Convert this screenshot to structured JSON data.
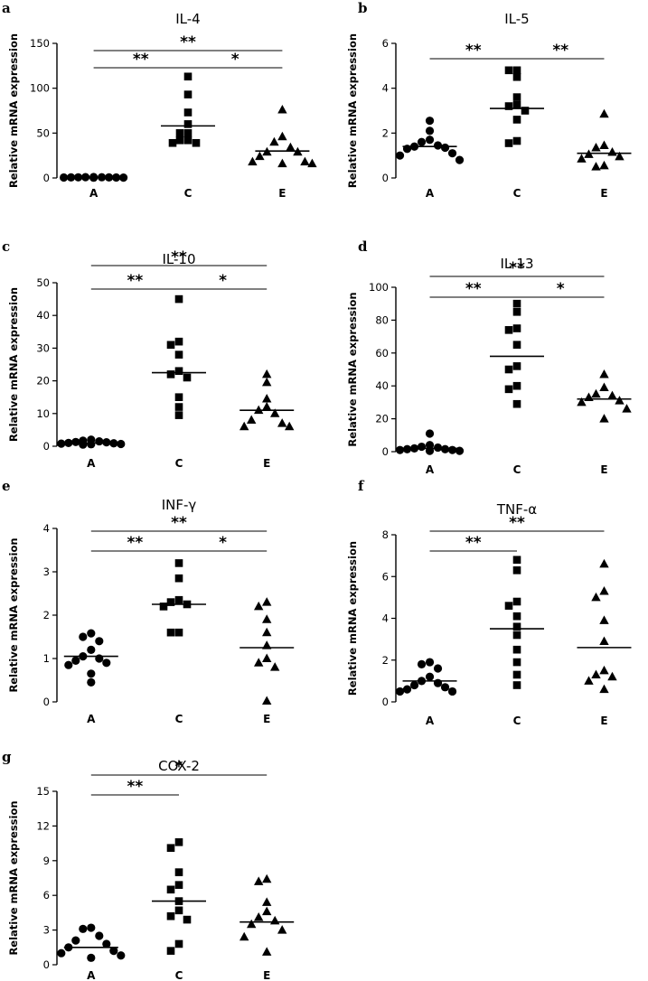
{
  "chart_data": [
    {
      "panel": "a",
      "type": "scatter",
      "title": "IL-4",
      "ylabel": "Relative mRNA expression",
      "categories": [
        "A",
        "C",
        "E"
      ],
      "ylim": [
        0,
        150
      ],
      "yticks": [
        0,
        50,
        100,
        150
      ],
      "groups": [
        {
          "category": "A",
          "marker": "circle",
          "mean": 0.5,
          "values": [
            0.3,
            0.4,
            0.5,
            0.5,
            0.6,
            0.6,
            0.7,
            0.8,
            0.9,
            1.0
          ]
        },
        {
          "category": "C",
          "marker": "square",
          "mean": 58,
          "values": [
            113,
            93,
            73,
            60,
            50,
            50,
            42,
            42,
            39,
            39
          ]
        },
        {
          "category": "E",
          "marker": "triangle",
          "mean": 30,
          "values": [
            76,
            46,
            40,
            34,
            29,
            29,
            24,
            18,
            18,
            16,
            16
          ]
        }
      ],
      "significance": [
        {
          "from": "A",
          "to": "C",
          "label": "**"
        },
        {
          "from": "C",
          "to": "E",
          "label": "*"
        },
        {
          "from": "A",
          "to": "E",
          "label": "**"
        }
      ]
    },
    {
      "panel": "b",
      "type": "scatter",
      "title": "IL-5",
      "ylabel": "Relative mRNA expression",
      "categories": [
        "A",
        "C",
        "E"
      ],
      "ylim": [
        0,
        6
      ],
      "yticks": [
        0,
        2,
        4,
        6
      ],
      "groups": [
        {
          "category": "A",
          "marker": "circle",
          "mean": 1.4,
          "values": [
            2.55,
            2.1,
            1.7,
            1.6,
            1.45,
            1.4,
            1.35,
            1.3,
            1.1,
            1.0,
            0.8
          ]
        },
        {
          "category": "C",
          "marker": "square",
          "mean": 3.1,
          "values": [
            4.8,
            4.8,
            4.5,
            3.6,
            3.25,
            3.2,
            3.0,
            2.6,
            1.65,
            1.55
          ]
        },
        {
          "category": "E",
          "marker": "triangle",
          "mean": 1.1,
          "values": [
            2.85,
            1.45,
            1.35,
            1.15,
            1.05,
            0.95,
            0.85,
            0.55,
            0.5
          ]
        }
      ],
      "significance": [
        {
          "from": "A",
          "to": "C",
          "label": "**"
        },
        {
          "from": "C",
          "to": "E",
          "label": "**"
        }
      ]
    },
    {
      "panel": "c",
      "type": "scatter",
      "title": "IL-10",
      "ylabel": "Relative mRNA expression",
      "categories": [
        "A",
        "C",
        "E"
      ],
      "ylim": [
        0,
        50
      ],
      "yticks": [
        0,
        10,
        20,
        30,
        40,
        50
      ],
      "groups": [
        {
          "category": "A",
          "marker": "circle",
          "mean": 1.0,
          "values": [
            0.5,
            0.6,
            0.7,
            0.8,
            0.9,
            1.0,
            1.2,
            1.3,
            1.5,
            1.7,
            2.0
          ]
        },
        {
          "category": "C",
          "marker": "square",
          "mean": 22.5,
          "values": [
            45,
            32,
            31,
            28,
            23,
            22,
            21,
            15,
            12,
            9.5
          ]
        },
        {
          "category": "E",
          "marker": "triangle",
          "mean": 11,
          "values": [
            22,
            19.5,
            14.5,
            12,
            11,
            10,
            8,
            7,
            6,
            6
          ]
        }
      ],
      "significance": [
        {
          "from": "A",
          "to": "C",
          "label": "**"
        },
        {
          "from": "C",
          "to": "E",
          "label": "*"
        },
        {
          "from": "A",
          "to": "E",
          "label": "**"
        }
      ]
    },
    {
      "panel": "d",
      "type": "scatter",
      "title": "IL-13",
      "ylabel": "Relative mRNA expression",
      "categories": [
        "A",
        "C",
        "E"
      ],
      "ylim": [
        0,
        100
      ],
      "yticks": [
        0,
        20,
        40,
        60,
        80,
        100
      ],
      "groups": [
        {
          "category": "A",
          "marker": "circle",
          "mean": 2.0,
          "values": [
            11,
            4,
            3,
            2.5,
            2,
            1.5,
            1.5,
            1,
            1,
            0.5,
            0.5
          ]
        },
        {
          "category": "C",
          "marker": "square",
          "mean": 58,
          "values": [
            90,
            85,
            75,
            74,
            65,
            52,
            50,
            40,
            38,
            29
          ]
        },
        {
          "category": "E",
          "marker": "triangle",
          "mean": 32,
          "values": [
            47,
            39,
            35,
            34,
            33,
            31,
            30,
            26,
            20
          ]
        }
      ],
      "significance": [
        {
          "from": "A",
          "to": "C",
          "label": "**"
        },
        {
          "from": "C",
          "to": "E",
          "label": "*"
        },
        {
          "from": "A",
          "to": "E",
          "label": "**"
        }
      ]
    },
    {
      "panel": "e",
      "type": "scatter",
      "title": "INF-γ",
      "ylabel": "Relative mRNA expression",
      "categories": [
        "A",
        "C",
        "E"
      ],
      "ylim": [
        0,
        4
      ],
      "yticks": [
        0,
        1,
        2,
        3,
        4
      ],
      "groups": [
        {
          "category": "A",
          "marker": "circle",
          "mean": 1.05,
          "values": [
            1.58,
            1.5,
            1.4,
            1.2,
            1.05,
            1.0,
            0.95,
            0.9,
            0.85,
            0.65,
            0.45
          ]
        },
        {
          "category": "C",
          "marker": "square",
          "mean": 2.25,
          "values": [
            3.2,
            2.85,
            2.35,
            2.3,
            2.25,
            2.2,
            1.6,
            1.6
          ]
        },
        {
          "category": "E",
          "marker": "triangle",
          "mean": 1.25,
          "values": [
            2.3,
            2.2,
            1.9,
            1.6,
            1.3,
            1.0,
            0.9,
            0.8,
            0.02
          ]
        }
      ],
      "significance": [
        {
          "from": "A",
          "to": "C",
          "label": "**"
        },
        {
          "from": "C",
          "to": "E",
          "label": "*"
        },
        {
          "from": "A",
          "to": "E",
          "label": "**"
        }
      ]
    },
    {
      "panel": "f",
      "type": "scatter",
      "title": "TNF-α",
      "ylabel": "Relative mRNA expression",
      "categories": [
        "A",
        "C",
        "E"
      ],
      "ylim": [
        0,
        8
      ],
      "yticks": [
        0,
        2,
        4,
        6,
        8
      ],
      "groups": [
        {
          "category": "A",
          "marker": "circle",
          "mean": 1.0,
          "values": [
            1.9,
            1.8,
            1.6,
            1.2,
            1.0,
            0.9,
            0.8,
            0.7,
            0.6,
            0.5,
            0.5
          ]
        },
        {
          "category": "C",
          "marker": "square",
          "mean": 3.5,
          "values": [
            6.8,
            6.3,
            4.8,
            4.6,
            4.1,
            3.6,
            3.2,
            2.5,
            1.9,
            1.3,
            0.8
          ]
        },
        {
          "category": "E",
          "marker": "triangle",
          "mean": 2.6,
          "values": [
            6.6,
            5.3,
            5.0,
            3.9,
            2.9,
            1.5,
            1.3,
            1.2,
            1.0,
            0.6
          ]
        }
      ],
      "significance": [
        {
          "from": "A",
          "to": "C",
          "label": "**"
        },
        {
          "from": "A",
          "to": "E",
          "label": "**"
        }
      ]
    },
    {
      "panel": "g",
      "type": "scatter",
      "title": "COX-2",
      "ylabel": "Relative mRNA expression",
      "categories": [
        "A",
        "C",
        "E"
      ],
      "ylim": [
        0,
        15
      ],
      "yticks": [
        0,
        3,
        6,
        9,
        12,
        15
      ],
      "groups": [
        {
          "category": "A",
          "marker": "circle",
          "mean": 1.5,
          "values": [
            3.2,
            3.1,
            2.5,
            2.1,
            1.8,
            1.5,
            1.2,
            1.0,
            0.8,
            0.6
          ]
        },
        {
          "category": "C",
          "marker": "square",
          "mean": 5.5,
          "values": [
            10.6,
            10.1,
            8.0,
            6.9,
            6.5,
            5.5,
            4.7,
            4.2,
            3.9,
            1.8,
            1.2
          ]
        },
        {
          "category": "E",
          "marker": "triangle",
          "mean": 3.7,
          "values": [
            7.4,
            7.2,
            5.4,
            4.6,
            4.1,
            3.8,
            3.5,
            3.0,
            2.4,
            1.1
          ]
        }
      ],
      "significance": [
        {
          "from": "A",
          "to": "C",
          "label": "**"
        },
        {
          "from": "A",
          "to": "E",
          "label": "*"
        }
      ]
    }
  ]
}
